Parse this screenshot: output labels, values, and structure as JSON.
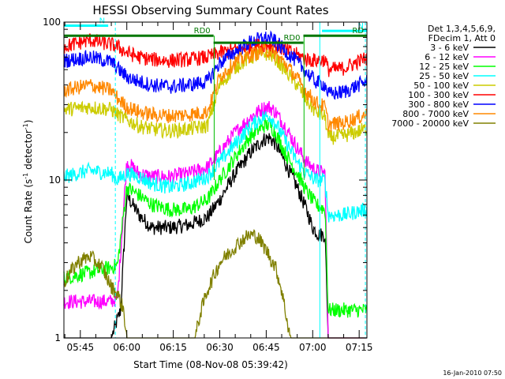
{
  "chart_data": {
    "type": "line",
    "title": "HESSI Observing Summary Count Rates",
    "xlabel": "Start Time (08-Nov-08 05:39:42)",
    "ylabel_main": "Count Rate (s",
    "ylabel_sup": "-1",
    "ylabel_rest": " detector",
    "ylabel_sup2": "-1",
    "ylabel_close": ")",
    "yscale": "log",
    "ylim": [
      1,
      100
    ],
    "xlim_minutes": [
      39.7,
      137.5
    ],
    "x_ticks": [
      {
        "minute": 45,
        "label": "05:45"
      },
      {
        "minute": 60,
        "label": "06:00"
      },
      {
        "minute": 75,
        "label": "06:15"
      },
      {
        "minute": 90,
        "label": "06:30"
      },
      {
        "minute": 105,
        "label": "06:45"
      },
      {
        "minute": 120,
        "label": "07:00"
      },
      {
        "minute": 135,
        "label": "07:15"
      }
    ],
    "y_ticks": [
      {
        "value": 1,
        "label": "1"
      },
      {
        "value": 10,
        "label": "10"
      },
      {
        "value": 100,
        "label": "100"
      }
    ],
    "legend_header": [
      "Det 1,3,4,5,6,9,",
      "FDecim 1, Att 0"
    ],
    "series": [
      {
        "name": "3 - 6 keV",
        "color": "#000000",
        "points": [
          [
            40,
            1.0
          ],
          [
            55,
            1.0
          ],
          [
            58,
            1.5
          ],
          [
            60,
            8.0
          ],
          [
            64,
            6.0
          ],
          [
            68,
            5.0
          ],
          [
            74,
            5.0
          ],
          [
            80,
            5.2
          ],
          [
            86,
            5.8
          ],
          [
            90,
            7.5
          ],
          [
            95,
            11
          ],
          [
            100,
            15
          ],
          [
            104,
            18
          ],
          [
            106,
            18.5
          ],
          [
            108,
            17
          ],
          [
            111,
            13
          ],
          [
            115,
            9
          ],
          [
            118,
            6.5
          ],
          [
            120,
            5.0
          ],
          [
            122,
            4.5
          ],
          [
            124,
            4.5
          ],
          [
            125,
            1.0
          ],
          [
            137,
            1.0
          ]
        ]
      },
      {
        "name": "6 - 12 keV",
        "color": "#ff00ff",
        "points": [
          [
            40,
            1.7
          ],
          [
            48,
            1.7
          ],
          [
            55,
            1.7
          ],
          [
            57,
            1.8
          ],
          [
            60,
            13
          ],
          [
            64,
            11
          ],
          [
            68,
            10.5
          ],
          [
            74,
            10.5
          ],
          [
            80,
            11
          ],
          [
            86,
            12
          ],
          [
            90,
            15
          ],
          [
            95,
            20
          ],
          [
            100,
            25
          ],
          [
            104,
            28.5
          ],
          [
            106,
            29
          ],
          [
            108,
            27
          ],
          [
            111,
            22
          ],
          [
            115,
            16
          ],
          [
            118,
            13
          ],
          [
            121,
            11.5
          ],
          [
            124,
            11
          ],
          [
            125,
            1.0
          ],
          [
            137,
            1.0
          ]
        ]
      },
      {
        "name": "12 - 25 keV",
        "color": "#00ff00",
        "points": [
          [
            40,
            2.4
          ],
          [
            48,
            2.6
          ],
          [
            55,
            2.8
          ],
          [
            57,
            2.9
          ],
          [
            60,
            9
          ],
          [
            64,
            8
          ],
          [
            68,
            7
          ],
          [
            74,
            6.5
          ],
          [
            80,
            6.5
          ],
          [
            86,
            7.5
          ],
          [
            90,
            10
          ],
          [
            95,
            14
          ],
          [
            100,
            19
          ],
          [
            104,
            22
          ],
          [
            106,
            22.5
          ],
          [
            108,
            20
          ],
          [
            111,
            15
          ],
          [
            115,
            11
          ],
          [
            118,
            8.5
          ],
          [
            121,
            7
          ],
          [
            124,
            6.5
          ],
          [
            125,
            1.5
          ],
          [
            137,
            1.5
          ]
        ]
      },
      {
        "name": "25 - 50 keV",
        "color": "#00ffff",
        "points": [
          [
            40,
            10.5
          ],
          [
            48,
            11.5
          ],
          [
            55,
            11
          ],
          [
            57,
            10
          ],
          [
            60,
            11
          ],
          [
            64,
            10.5
          ],
          [
            68,
            9.5
          ],
          [
            74,
            9
          ],
          [
            80,
            9.5
          ],
          [
            86,
            10.5
          ],
          [
            90,
            13
          ],
          [
            95,
            17
          ],
          [
            100,
            22
          ],
          [
            104,
            25
          ],
          [
            106,
            25.5
          ],
          [
            108,
            23
          ],
          [
            111,
            18
          ],
          [
            115,
            13
          ],
          [
            118,
            11
          ],
          [
            121,
            10
          ],
          [
            124,
            10
          ],
          [
            125,
            6
          ],
          [
            130,
            6
          ],
          [
            137,
            6.5
          ]
        ]
      },
      {
        "name": "50 - 100 keV",
        "color": "#cccc00",
        "points": [
          [
            40,
            28
          ],
          [
            48,
            29
          ],
          [
            55,
            28
          ],
          [
            57,
            26
          ],
          [
            60,
            24
          ],
          [
            64,
            22
          ],
          [
            68,
            21
          ],
          [
            74,
            20.5
          ],
          [
            80,
            21
          ],
          [
            86,
            22
          ],
          [
            90,
            40
          ],
          [
            95,
            52
          ],
          [
            100,
            60
          ],
          [
            104,
            63
          ],
          [
            106,
            63
          ],
          [
            108,
            59
          ],
          [
            111,
            50
          ],
          [
            115,
            40
          ],
          [
            118,
            32
          ],
          [
            121,
            27
          ],
          [
            124,
            25
          ],
          [
            125,
            18.5
          ],
          [
            130,
            19
          ],
          [
            137,
            21
          ]
        ]
      },
      {
        "name": "100 - 300 keV",
        "color": "#ff0000",
        "points": [
          [
            40,
            70
          ],
          [
            48,
            77
          ],
          [
            55,
            72
          ],
          [
            57,
            70
          ],
          [
            60,
            64
          ],
          [
            64,
            60
          ],
          [
            68,
            58
          ],
          [
            74,
            57
          ],
          [
            80,
            58
          ],
          [
            86,
            60
          ],
          [
            90,
            64
          ],
          [
            95,
            67
          ],
          [
            100,
            70
          ],
          [
            104,
            72
          ],
          [
            106,
            72
          ],
          [
            108,
            70
          ],
          [
            111,
            67
          ],
          [
            115,
            62
          ],
          [
            118,
            58
          ],
          [
            121,
            57
          ],
          [
            124,
            58
          ],
          [
            125,
            50
          ],
          [
            130,
            51
          ],
          [
            137,
            59
          ]
        ]
      },
      {
        "name": "300 - 800 keV",
        "color": "#0000ff",
        "points": [
          [
            40,
            57
          ],
          [
            48,
            60
          ],
          [
            55,
            56
          ],
          [
            57,
            51
          ],
          [
            60,
            45
          ],
          [
            64,
            42
          ],
          [
            68,
            40
          ],
          [
            74,
            39
          ],
          [
            80,
            40
          ],
          [
            86,
            42
          ],
          [
            90,
            55
          ],
          [
            95,
            65
          ],
          [
            100,
            75
          ],
          [
            104,
            79
          ],
          [
            106,
            79
          ],
          [
            108,
            75
          ],
          [
            111,
            66
          ],
          [
            115,
            56
          ],
          [
            118,
            48
          ],
          [
            121,
            42
          ],
          [
            124,
            40
          ],
          [
            125,
            35
          ],
          [
            130,
            36
          ],
          [
            137,
            42
          ]
        ]
      },
      {
        "name": "800 - 7000 keV",
        "color": "#ff8800",
        "points": [
          [
            40,
            37
          ],
          [
            48,
            40
          ],
          [
            55,
            37
          ],
          [
            57,
            33
          ],
          [
            60,
            29
          ],
          [
            64,
            27
          ],
          [
            68,
            26
          ],
          [
            74,
            25.5
          ],
          [
            80,
            26
          ],
          [
            86,
            27
          ],
          [
            90,
            45
          ],
          [
            95,
            56
          ],
          [
            100,
            62
          ],
          [
            104,
            66
          ],
          [
            106,
            66
          ],
          [
            108,
            62
          ],
          [
            111,
            55
          ],
          [
            115,
            44
          ],
          [
            118,
            36
          ],
          [
            121,
            31
          ],
          [
            124,
            29
          ],
          [
            125,
            22.5
          ],
          [
            130,
            23
          ],
          [
            137,
            26
          ]
        ]
      },
      {
        "name": "7000 - 20000 keV",
        "color": "#808000",
        "points": [
          [
            40,
            2.3
          ],
          [
            44,
            3.0
          ],
          [
            48,
            3.3
          ],
          [
            52,
            2.8
          ],
          [
            55,
            2.1
          ],
          [
            57,
            1.9
          ],
          [
            59,
            1.5
          ],
          [
            60,
            1.0
          ],
          [
            82,
            1.0
          ],
          [
            84,
            1.5
          ],
          [
            86,
            2.0
          ],
          [
            90,
            3.0
          ],
          [
            95,
            3.8
          ],
          [
            98,
            4.3
          ],
          [
            100,
            4.5
          ],
          [
            102,
            4.4
          ],
          [
            105,
            3.6
          ],
          [
            108,
            2.8
          ],
          [
            110,
            2.0
          ],
          [
            112,
            1.2
          ],
          [
            113,
            1.0
          ],
          [
            137,
            1.0
          ]
        ]
      }
    ],
    "flags": [
      {
        "label": "N",
        "color": "#00ffff",
        "x_start": 39.7,
        "x_end": 54,
        "value": 95
      },
      {
        "label": "N",
        "color": "#00ffff",
        "x_start": 123,
        "x_end": 137.5,
        "value": 88
      },
      {
        "label": "RD0",
        "color": "#007700",
        "x_start": 39.7,
        "x_end": 88,
        "value": 82
      },
      {
        "label": "RD0",
        "color": "#007700",
        "x_start": 88,
        "x_end": 117,
        "value": 74
      },
      {
        "label": "RD",
        "color": "#007700",
        "x_start": 117,
        "x_end": 137.5,
        "value": 82
      }
    ],
    "markers_cyan_dashed": [
      56.3,
      137
    ],
    "markers_cyan_solid": [
      122.3
    ],
    "markers_green_solid": [
      88.2,
      117.2
    ]
  },
  "footer": {
    "date_stamp": "16-Jan-2010 07:50"
  }
}
